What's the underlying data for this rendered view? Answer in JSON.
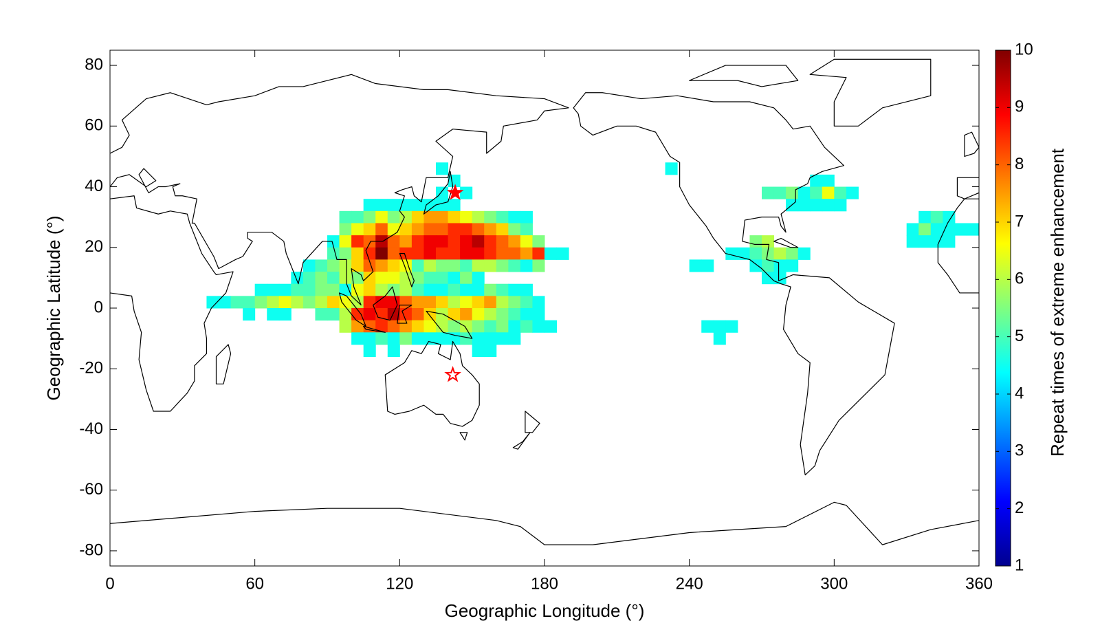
{
  "chart_data": {
    "type": "heatmap",
    "xlabel": "Geographic Longitude (°)",
    "ylabel": "Geographic Latitude (°)",
    "colorbar_label": "Repeat times of extreme enhancement",
    "colormap": "jet",
    "xlim": [
      0,
      360
    ],
    "xticks": [
      0,
      60,
      120,
      180,
      240,
      300,
      360
    ],
    "ylim": [
      -85,
      85
    ],
    "yticks": [
      -80,
      -60,
      -40,
      -20,
      0,
      20,
      40,
      60,
      80
    ],
    "clim": [
      1,
      10
    ],
    "cticks": [
      1,
      2,
      3,
      4,
      5,
      6,
      7,
      8,
      9,
      10
    ],
    "cells": [
      {
        "y": 44,
        "x": [
          135,
          230
        ],
        "values": [
          4.5,
          4.5
        ]
      },
      {
        "y": 40,
        "x": [
          140,
          290,
          295
        ],
        "values": [
          4.5,
          4.5,
          4.5
        ]
      },
      {
        "y": 36,
        "x": [
          135,
          145,
          270,
          275,
          280,
          285,
          290,
          295,
          300,
          305
        ],
        "values": [
          4.5,
          4.5,
          5,
          5,
          5.5,
          4.5,
          5,
          6.5,
          5,
          4.5
        ]
      },
      {
        "y": 32,
        "x": [
          105,
          110,
          115,
          120,
          125,
          130,
          135,
          140,
          280,
          285,
          290,
          295,
          300
        ],
        "values": [
          4.5,
          4.5,
          4.5,
          4.5,
          4.5,
          4.5,
          4.5,
          4.5,
          4.5,
          4.5,
          4.5,
          4.5,
          4.5
        ]
      },
      {
        "y": 28,
        "x": [
          95,
          100,
          105,
          110,
          115,
          120,
          125,
          130,
          135,
          140,
          145,
          150,
          155,
          160,
          165,
          170,
          335,
          340,
          345
        ],
        "values": [
          5,
          5,
          5.5,
          6.5,
          5.5,
          6,
          7,
          7.5,
          7.5,
          7,
          6.5,
          6,
          5.5,
          5,
          4.5,
          4.5,
          4.5,
          5,
          4.5
        ]
      },
      {
        "y": 24,
        "x": [
          95,
          100,
          105,
          110,
          115,
          120,
          125,
          130,
          135,
          140,
          145,
          150,
          155,
          160,
          165,
          170,
          330,
          335,
          340,
          345,
          350,
          355
        ],
        "values": [
          5.5,
          6.5,
          7,
          8,
          6.5,
          7,
          7.5,
          8,
          8,
          8.5,
          8.5,
          8,
          7.5,
          7,
          5.5,
          5,
          4.5,
          5.5,
          4.5,
          4.5,
          4.5,
          4.5
        ]
      },
      {
        "y": 20,
        "x": [
          90,
          95,
          100,
          105,
          110,
          115,
          120,
          125,
          130,
          135,
          140,
          145,
          150,
          155,
          160,
          165,
          170,
          175,
          265,
          270,
          330,
          335,
          340,
          345
        ],
        "values": [
          4.5,
          6.5,
          8.5,
          8,
          9.5,
          8,
          7.5,
          8.5,
          9,
          9,
          8.5,
          9,
          9.5,
          8.5,
          8,
          7.5,
          6.5,
          5.5,
          5.5,
          6,
          4.5,
          4.5,
          4.5,
          4.5
        ]
      },
      {
        "y": 16,
        "x": [
          90,
          95,
          100,
          105,
          110,
          115,
          120,
          125,
          130,
          135,
          140,
          145,
          150,
          155,
          160,
          165,
          170,
          175,
          180,
          185,
          255,
          260,
          265,
          270,
          275,
          280,
          285
        ],
        "values": [
          5,
          5.5,
          7,
          8.5,
          10,
          8,
          8.5,
          8.5,
          9,
          8.5,
          8.5,
          9,
          9,
          8.5,
          8,
          8,
          7.5,
          8.5,
          4.5,
          4.5,
          4.5,
          4.5,
          5,
          5.5,
          6,
          5.5,
          4.5
        ]
      },
      {
        "y": 12,
        "x": [
          80,
          85,
          90,
          95,
          100,
          105,
          110,
          115,
          120,
          125,
          130,
          135,
          140,
          145,
          150,
          155,
          160,
          165,
          170,
          175,
          240,
          245,
          265,
          270,
          275,
          280
        ],
        "values": [
          4.5,
          5,
          5.5,
          6,
          7,
          8,
          7.5,
          7,
          6.5,
          5,
          6,
          5.5,
          5.5,
          5,
          6,
          6,
          5.5,
          5,
          4.5,
          5.5,
          4.5,
          4.5,
          4.5,
          5,
          4.5,
          4.5
        ]
      },
      {
        "y": 8,
        "x": [
          75,
          80,
          85,
          90,
          95,
          100,
          105,
          110,
          115,
          120,
          125,
          130,
          135,
          140,
          145,
          150,
          270,
          275
        ],
        "values": [
          4.5,
          5,
          5.5,
          5,
          6,
          5.5,
          7,
          6.5,
          6.5,
          6,
          5.5,
          5,
          5,
          4.5,
          5.5,
          4.5,
          4.5,
          4.5
        ]
      },
      {
        "y": 4,
        "x": [
          60,
          65,
          70,
          75,
          80,
          85,
          90,
          95,
          100,
          105,
          110,
          115,
          120,
          125,
          130,
          135,
          140,
          145,
          150,
          155,
          160,
          165,
          170
        ],
        "values": [
          4.5,
          4.5,
          4.5,
          5,
          5,
          5.5,
          5.5,
          4.5,
          6.5,
          7,
          6,
          5.5,
          6,
          5,
          4.5,
          4.5,
          5,
          4.5,
          4.5,
          5.5,
          5,
          4.5,
          4.5
        ]
      },
      {
        "y": 0,
        "x": [
          40,
          45,
          50,
          55,
          60,
          65,
          70,
          75,
          80,
          85,
          90,
          95,
          100,
          105,
          110,
          115,
          120,
          125,
          130,
          135,
          140,
          145,
          150,
          155,
          160,
          165,
          170,
          175
        ],
        "values": [
          4.5,
          4.5,
          5,
          5,
          5.5,
          6,
          6.5,
          6,
          5.5,
          6,
          7,
          6.5,
          6,
          8.5,
          9,
          9,
          8,
          7.5,
          7.5,
          7,
          6,
          6.5,
          7,
          7.5,
          6,
          5.5,
          5,
          4.5
        ]
      },
      {
        "y": -4,
        "x": [
          55,
          65,
          70,
          85,
          90,
          95,
          100,
          105,
          110,
          115,
          120,
          125,
          130,
          135,
          140,
          145,
          150,
          155,
          160,
          165,
          170,
          175
        ],
        "values": [
          4.5,
          4.5,
          4.5,
          5,
          5,
          6,
          8.5,
          9,
          8.5,
          9.5,
          8.5,
          8,
          7,
          6,
          7,
          7.5,
          6.5,
          6,
          5.5,
          5,
          4.5,
          4.5
        ]
      },
      {
        "y": -8,
        "x": [
          95,
          100,
          105,
          110,
          115,
          120,
          125,
          130,
          135,
          140,
          145,
          150,
          155,
          160,
          165,
          170,
          175,
          180,
          245,
          250,
          255
        ],
        "values": [
          6,
          7.5,
          8,
          8.5,
          8,
          7.5,
          7,
          6.5,
          6,
          5.5,
          6,
          5.5,
          5,
          5.5,
          4.5,
          5,
          4.5,
          4.5,
          4.5,
          4.5,
          4.5
        ]
      },
      {
        "y": -12,
        "x": [
          100,
          105,
          110,
          115,
          120,
          125,
          130,
          135,
          140,
          145,
          150,
          155,
          160,
          165,
          250
        ],
        "values": [
          4.5,
          4.5,
          5,
          4.5,
          5.5,
          4.5,
          4.5,
          4.5,
          4.5,
          5,
          4.5,
          4.5,
          4.5,
          4.5,
          4.5
        ]
      },
      {
        "y": -16,
        "x": [
          105,
          115,
          150,
          155
        ],
        "values": [
          4.5,
          4.5,
          4.5,
          4.5
        ]
      }
    ],
    "markers": [
      {
        "x": 143,
        "y": 38,
        "style": "filled",
        "color": "#ff0000"
      },
      {
        "x": 142,
        "y": -22,
        "style": "open",
        "color": "#ff0000"
      }
    ]
  }
}
